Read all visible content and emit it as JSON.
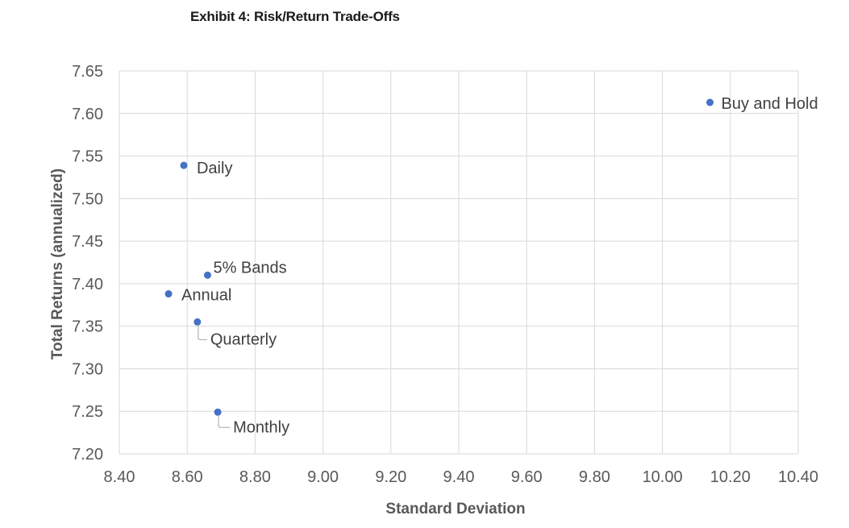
{
  "chart_data": {
    "type": "scatter",
    "title": "Exhibit 4: Risk/Return Trade-Offs",
    "xlabel": "Standard Deviation",
    "ylabel": "Total Returns (annualized)",
    "xlim": [
      8.4,
      10.4
    ],
    "ylim": [
      7.2,
      7.65
    ],
    "xticks": [
      "8.40",
      "8.60",
      "8.80",
      "9.00",
      "9.20",
      "9.40",
      "9.60",
      "9.80",
      "10.00",
      "10.20",
      "10.40"
    ],
    "yticks": [
      "7.65",
      "7.60",
      "7.55",
      "7.50",
      "7.45",
      "7.40",
      "7.35",
      "7.30",
      "7.25",
      "7.20"
    ],
    "grid": true,
    "legend": "none",
    "marker_color": "#4472C4",
    "points": [
      {
        "label": "Buy and Hold",
        "x": 10.14,
        "y": 7.613
      },
      {
        "label": "Daily",
        "x": 8.59,
        "y": 7.539
      },
      {
        "label": "5% Bands",
        "x": 8.66,
        "y": 7.41
      },
      {
        "label": "Annual",
        "x": 8.545,
        "y": 7.388
      },
      {
        "label": "Quarterly",
        "x": 8.63,
        "y": 7.355
      },
      {
        "label": "Monthly",
        "x": 8.69,
        "y": 7.249
      }
    ]
  }
}
